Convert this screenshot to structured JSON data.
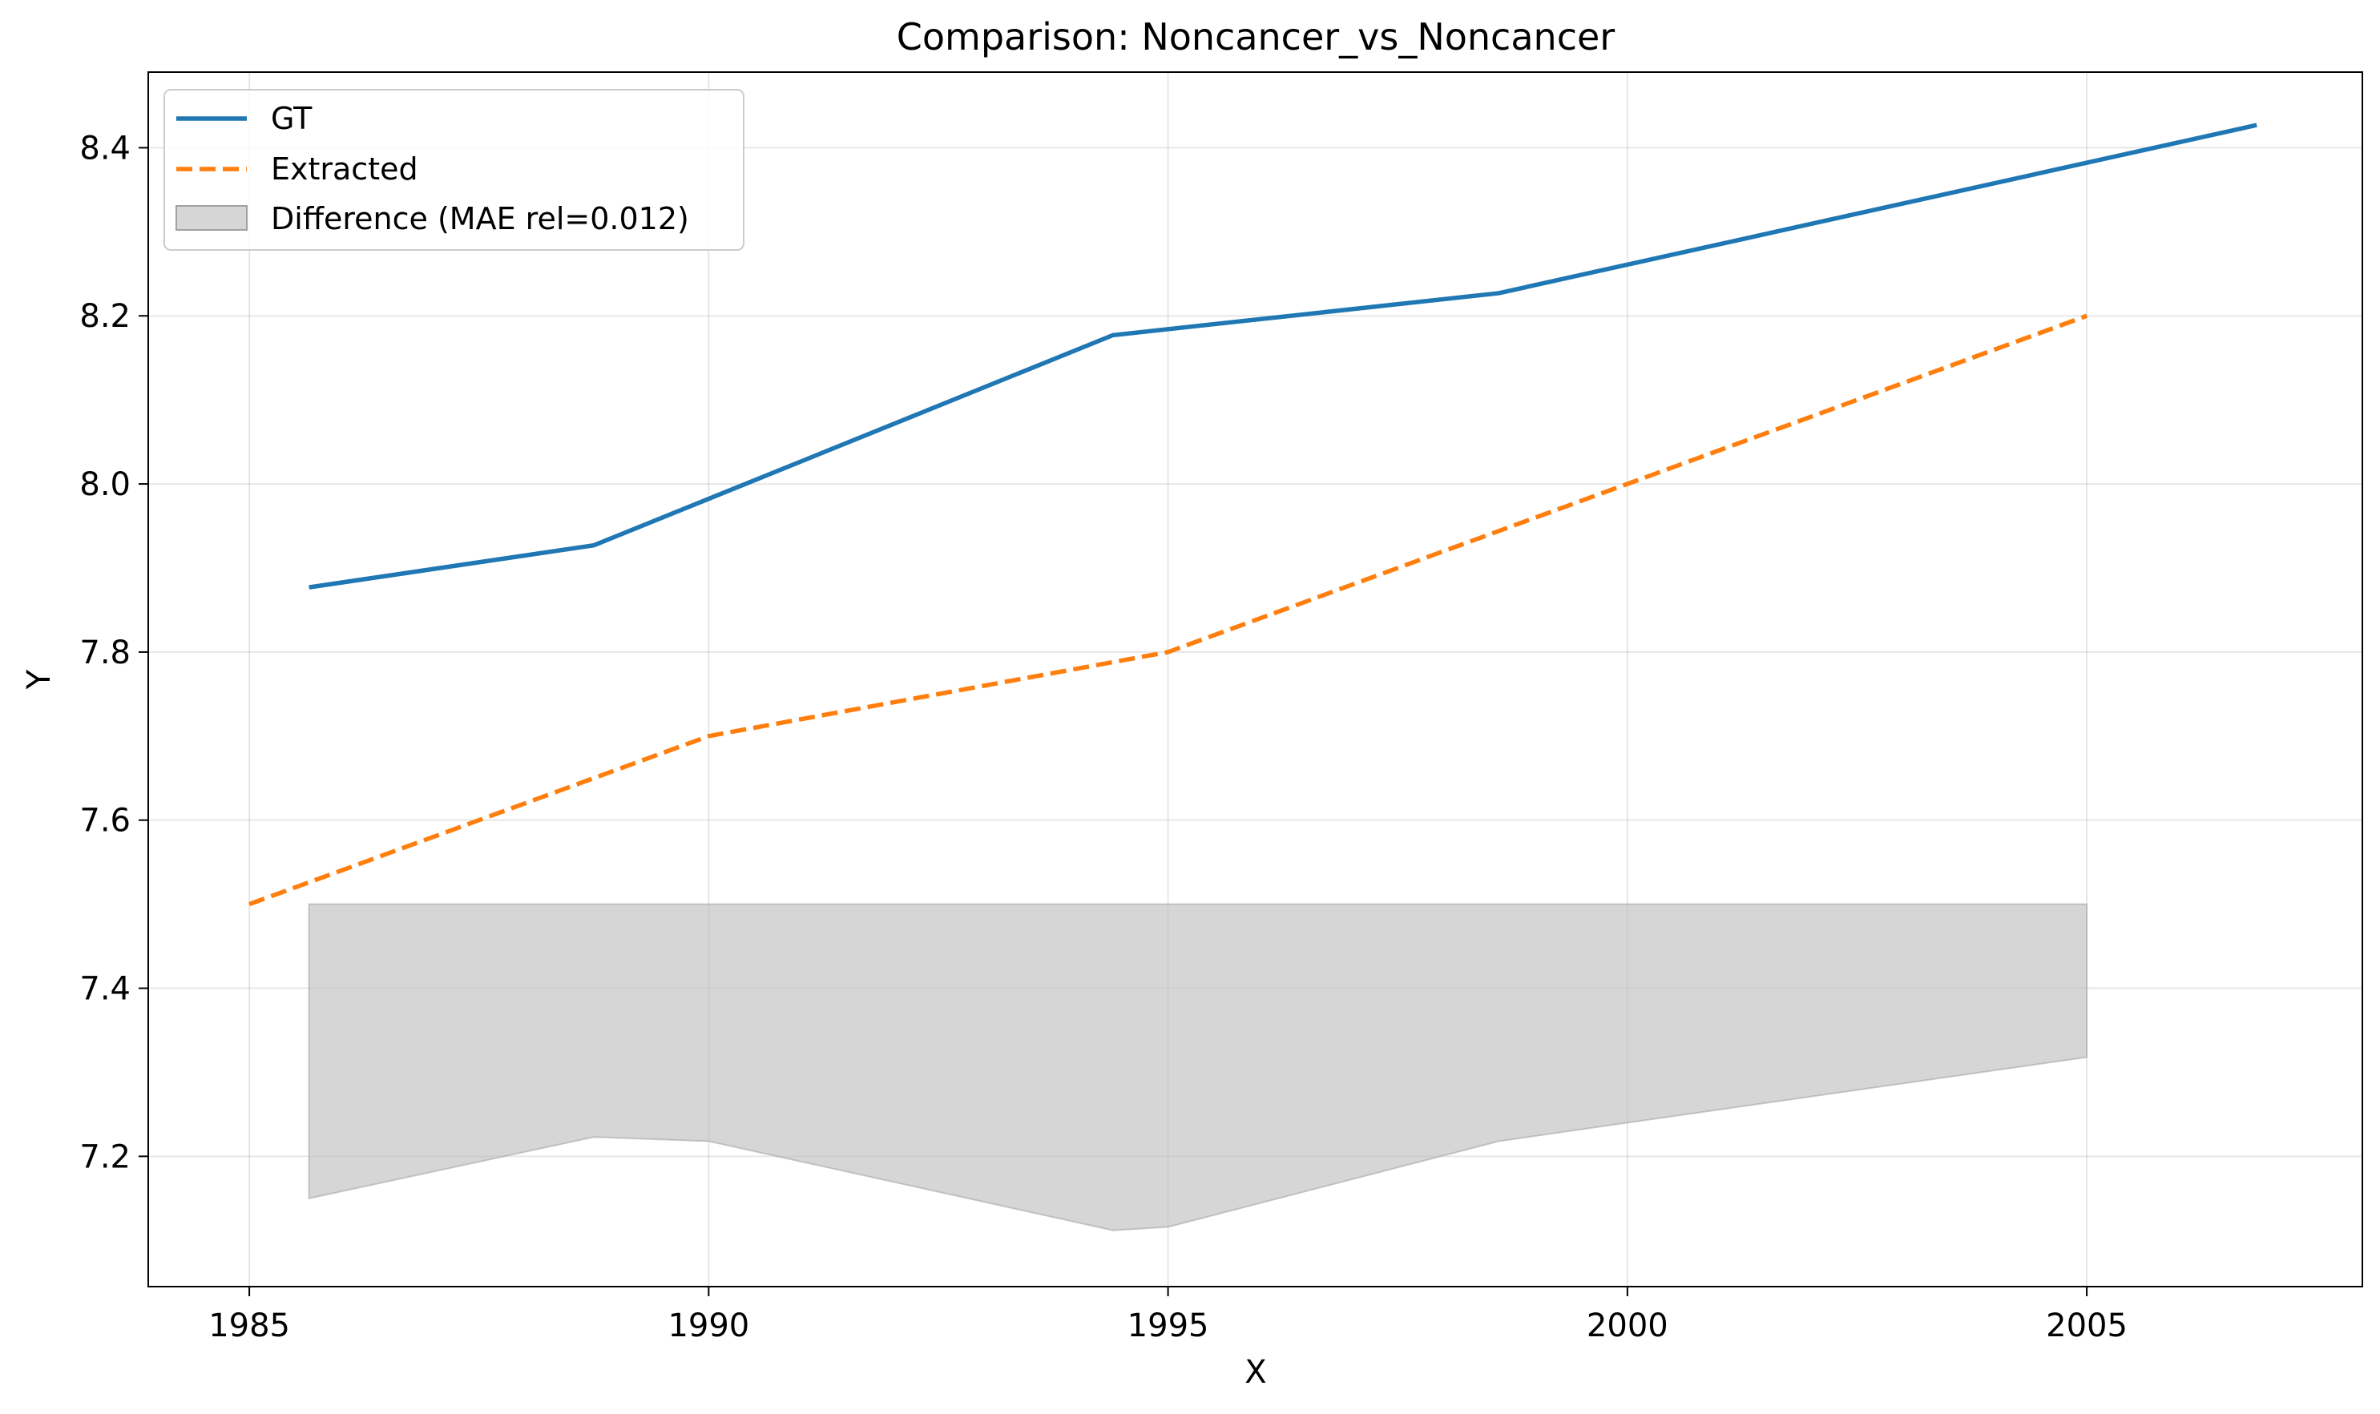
{
  "chart_data": {
    "type": "line",
    "title": "Comparison: Noncancer_vs_Noncancer",
    "xlabel": "X",
    "ylabel": "Y",
    "xlim": [
      1983.9,
      2008.0
    ],
    "ylim": [
      7.045,
      8.49
    ],
    "xticks": [
      1985,
      1990,
      1995,
      2000,
      2005
    ],
    "xtick_labels": [
      "1985",
      "1990",
      "1995",
      "2000",
      "2005"
    ],
    "yticks": [
      7.2,
      7.4,
      7.6,
      7.8,
      8.0,
      8.2,
      8.4
    ],
    "ytick_labels": [
      "7.2",
      "7.4",
      "7.6",
      "7.8",
      "8.0",
      "8.2",
      "8.4"
    ],
    "grid": true,
    "legend_position": "upper-left",
    "series": [
      {
        "name": "GT",
        "style": "solid",
        "color": "#1f77b4",
        "x": [
          1985.65,
          1988.75,
          1994.4,
          1998.6,
          2006.85
        ],
        "y": [
          7.877,
          7.927,
          8.177,
          8.227,
          8.427
        ]
      },
      {
        "name": "Extracted",
        "style": "dashed",
        "color": "#ff7f0e",
        "x": [
          1985.0,
          1990.0,
          1995.0,
          2000.0,
          2005.0
        ],
        "y": [
          7.5,
          7.7,
          7.8,
          8.0,
          8.2
        ]
      }
    ],
    "difference": {
      "name": "Difference (MAE rel=0.012)",
      "color": "#c0c0c0",
      "top": 7.5,
      "x": [
        1985.65,
        1988.75,
        1990.0,
        1994.4,
        1995.0,
        1998.6,
        2000.0,
        2005.0
      ],
      "y": [
        7.15,
        7.223,
        7.218,
        7.112,
        7.116,
        7.218,
        7.24,
        7.318
      ]
    }
  }
}
